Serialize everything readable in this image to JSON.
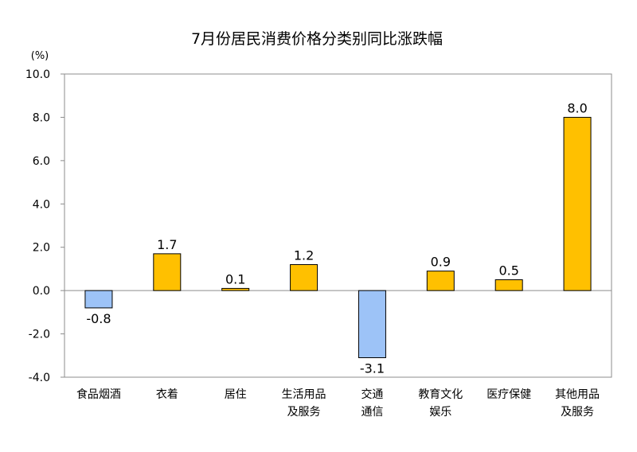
{
  "chart_data": {
    "type": "bar",
    "title": "7月份居民消费价格分类别同比涨跌幅",
    "unit": "(%)",
    "categories": [
      [
        "食品烟酒"
      ],
      [
        "衣着"
      ],
      [
        "居住"
      ],
      [
        "生活用品",
        "及服务"
      ],
      [
        "交通",
        "通信"
      ],
      [
        "教育文化",
        "娱乐"
      ],
      [
        "医疗保健"
      ],
      [
        "其他用品",
        "及服务"
      ]
    ],
    "values": [
      -0.8,
      1.7,
      0.1,
      1.2,
      -3.1,
      0.9,
      0.5,
      8.0
    ],
    "value_labels": [
      "-0.8",
      "1.7",
      "0.1",
      "1.2",
      "-3.1",
      "0.9",
      "0.5",
      "8.0"
    ],
    "ylim": [
      -4.0,
      10.0
    ],
    "yticks": [
      "10.0",
      "8.0",
      "6.0",
      "4.0",
      "2.0",
      "0.0",
      "-2.0",
      "-4.0"
    ],
    "ytick_values": [
      10,
      8,
      6,
      4,
      2,
      0,
      -2,
      -4
    ],
    "colors": {
      "positive": "#FFC000",
      "negative": "#9DC3F7",
      "border": "#000000"
    },
    "grid": false
  }
}
